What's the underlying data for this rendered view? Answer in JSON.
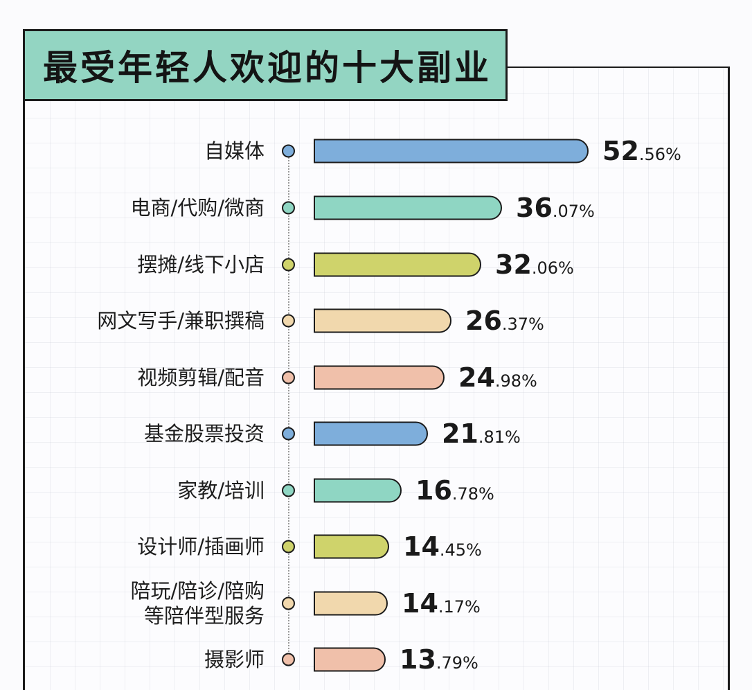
{
  "chart_data": {
    "type": "bar",
    "orientation": "horizontal",
    "title": "最受年轻人欢迎的十大副业",
    "categories": [
      "自媒体",
      "电商/代购/微商",
      "摆摊/线下小店",
      "网文写手/兼职撰稿",
      "视频剪辑/配音",
      "基金股票投资",
      "家教/培训",
      "设计师/插画师",
      "陪玩/陪诊/陪购等陪伴型服务",
      "摄影师"
    ],
    "values": [
      52.56,
      36.07,
      32.06,
      26.37,
      24.98,
      21.81,
      16.78,
      14.45,
      14.17,
      13.79
    ],
    "unit": "%",
    "xlabel": "",
    "ylabel": "",
    "grid": true,
    "legend": null
  },
  "header": {
    "title": "最受年轻人欢迎的十大副业",
    "title_bg": "#93d5c2"
  },
  "rows": [
    {
      "label": "自媒体",
      "int": "52",
      "dec": ".56%",
      "value": 52.56,
      "color": "#7eaedb"
    },
    {
      "label": "电商/代购/微商",
      "int": "36",
      "dec": ".07%",
      "value": 36.07,
      "color": "#8fd6c3"
    },
    {
      "label": "摆摊/线下小店",
      "int": "32",
      "dec": ".06%",
      "value": 32.06,
      "color": "#cfd36b"
    },
    {
      "label": "网文写手/兼职撰稿",
      "int": "26",
      "dec": ".37%",
      "value": 26.37,
      "color": "#f1d8ad"
    },
    {
      "label": "视频剪辑/配音",
      "int": "24",
      "dec": ".98%",
      "value": 24.98,
      "color": "#f0c0aa"
    },
    {
      "label": "基金股票投资",
      "int": "21",
      "dec": ".81%",
      "value": 21.81,
      "color": "#7eaedb"
    },
    {
      "label": "家教/培训",
      "int": "16",
      "dec": ".78%",
      "value": 16.78,
      "color": "#8fd6c3"
    },
    {
      "label": "设计师/插画师",
      "int": "14",
      "dec": ".45%",
      "value": 14.45,
      "color": "#cfd36b"
    },
    {
      "label_line1": "陪玩/陪诊/陪购",
      "label_line2": "等陪伴型服务",
      "int": "14",
      "dec": ".17%",
      "value": 14.17,
      "color": "#f1d8ad"
    },
    {
      "label": "摄影师",
      "int": "13",
      "dec": ".79%",
      "value": 13.79,
      "color": "#f0c0aa"
    }
  ]
}
